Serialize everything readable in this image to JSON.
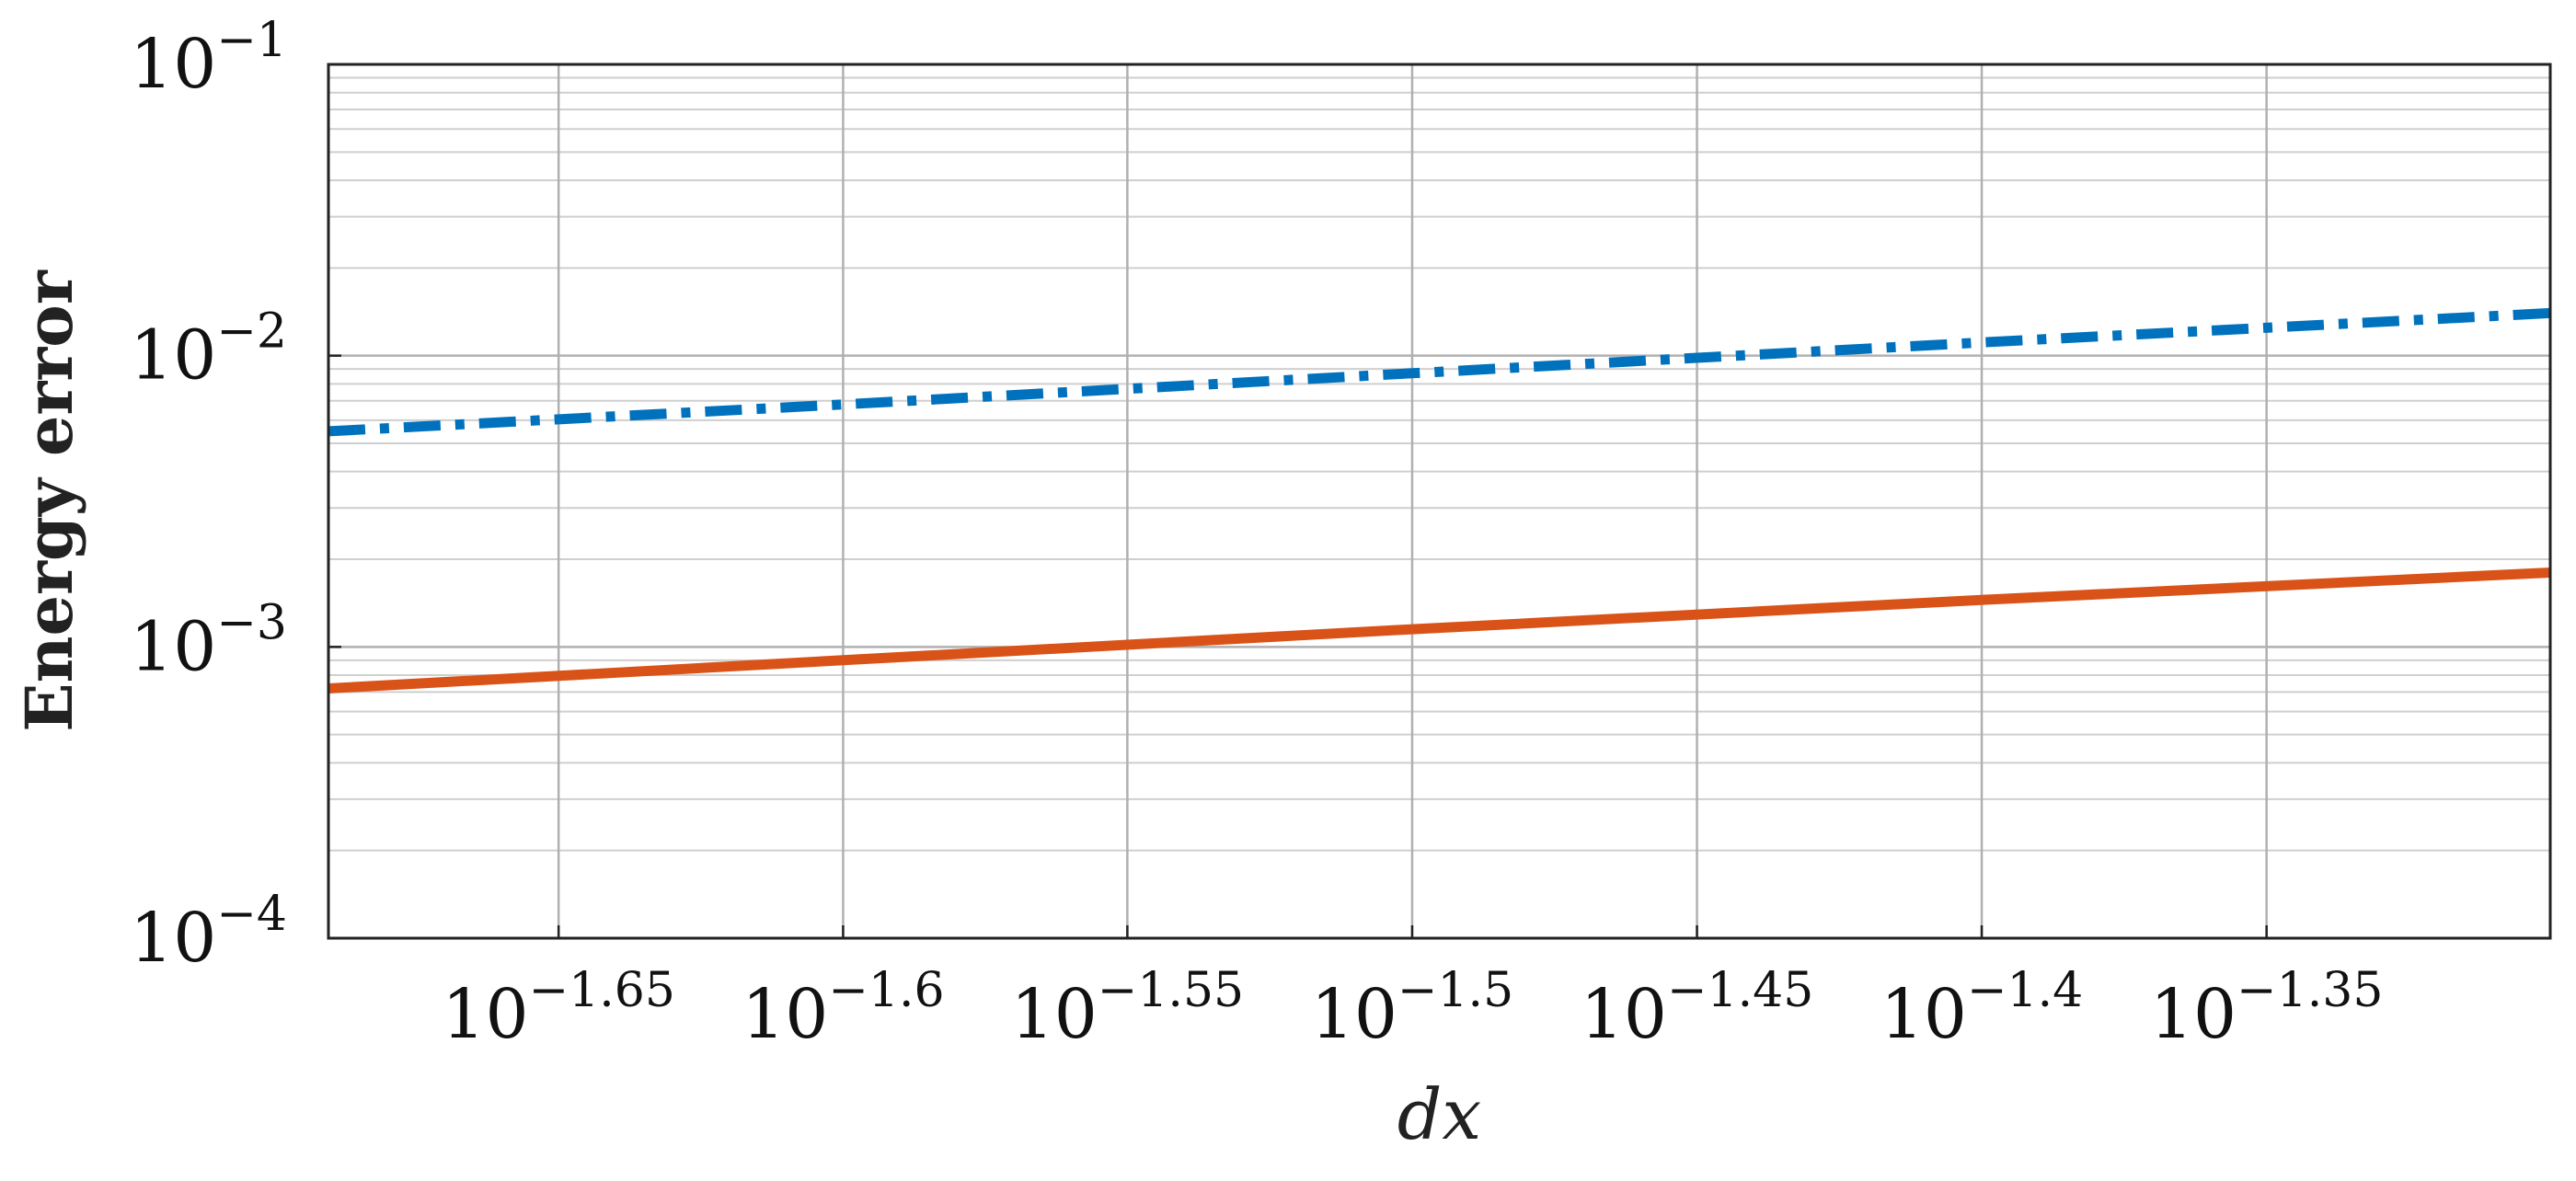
{
  "chart_data": {
    "type": "line",
    "title": "",
    "xlabel": "dx",
    "ylabel": "Energy error",
    "x_scale": "log10",
    "y_scale": "log10",
    "xlim": [
      0.0204,
      0.0501
    ],
    "ylim": [
      0.0001,
      0.1
    ],
    "grid": true,
    "legend": "none",
    "x_ticks": [
      {
        "value": 0.02239,
        "base": "10",
        "exp": "−1.65"
      },
      {
        "value": 0.02512,
        "base": "10",
        "exp": "−1.6"
      },
      {
        "value": 0.02818,
        "base": "10",
        "exp": "−1.55"
      },
      {
        "value": 0.03162,
        "base": "10",
        "exp": "−1.5"
      },
      {
        "value": 0.03548,
        "base": "10",
        "exp": "−1.45"
      },
      {
        "value": 0.03981,
        "base": "10",
        "exp": "−1.4"
      },
      {
        "value": 0.04467,
        "base": "10",
        "exp": "−1.35"
      }
    ],
    "y_ticks": [
      {
        "value": 0.0001,
        "base": "10",
        "exp": "−4"
      },
      {
        "value": 0.001,
        "base": "10",
        "exp": "−3"
      },
      {
        "value": 0.01,
        "base": "10",
        "exp": "−2"
      },
      {
        "value": 0.1,
        "base": "10",
        "exp": "−1"
      }
    ],
    "series": [
      {
        "color": "#0072BD",
        "style": "dash-dot",
        "x": [
          0.0204,
          0.02512,
          0.03162,
          0.03981,
          0.0501
        ],
        "y": [
          0.0055,
          0.0068,
          0.0087,
          0.0111,
          0.014
        ]
      },
      {
        "color": "#D95319",
        "style": "solid",
        "x": [
          0.0204,
          0.02512,
          0.03162,
          0.03981,
          0.0501
        ],
        "y": [
          0.00072,
          0.0009,
          0.00115,
          0.00145,
          0.0018
        ]
      }
    ]
  }
}
